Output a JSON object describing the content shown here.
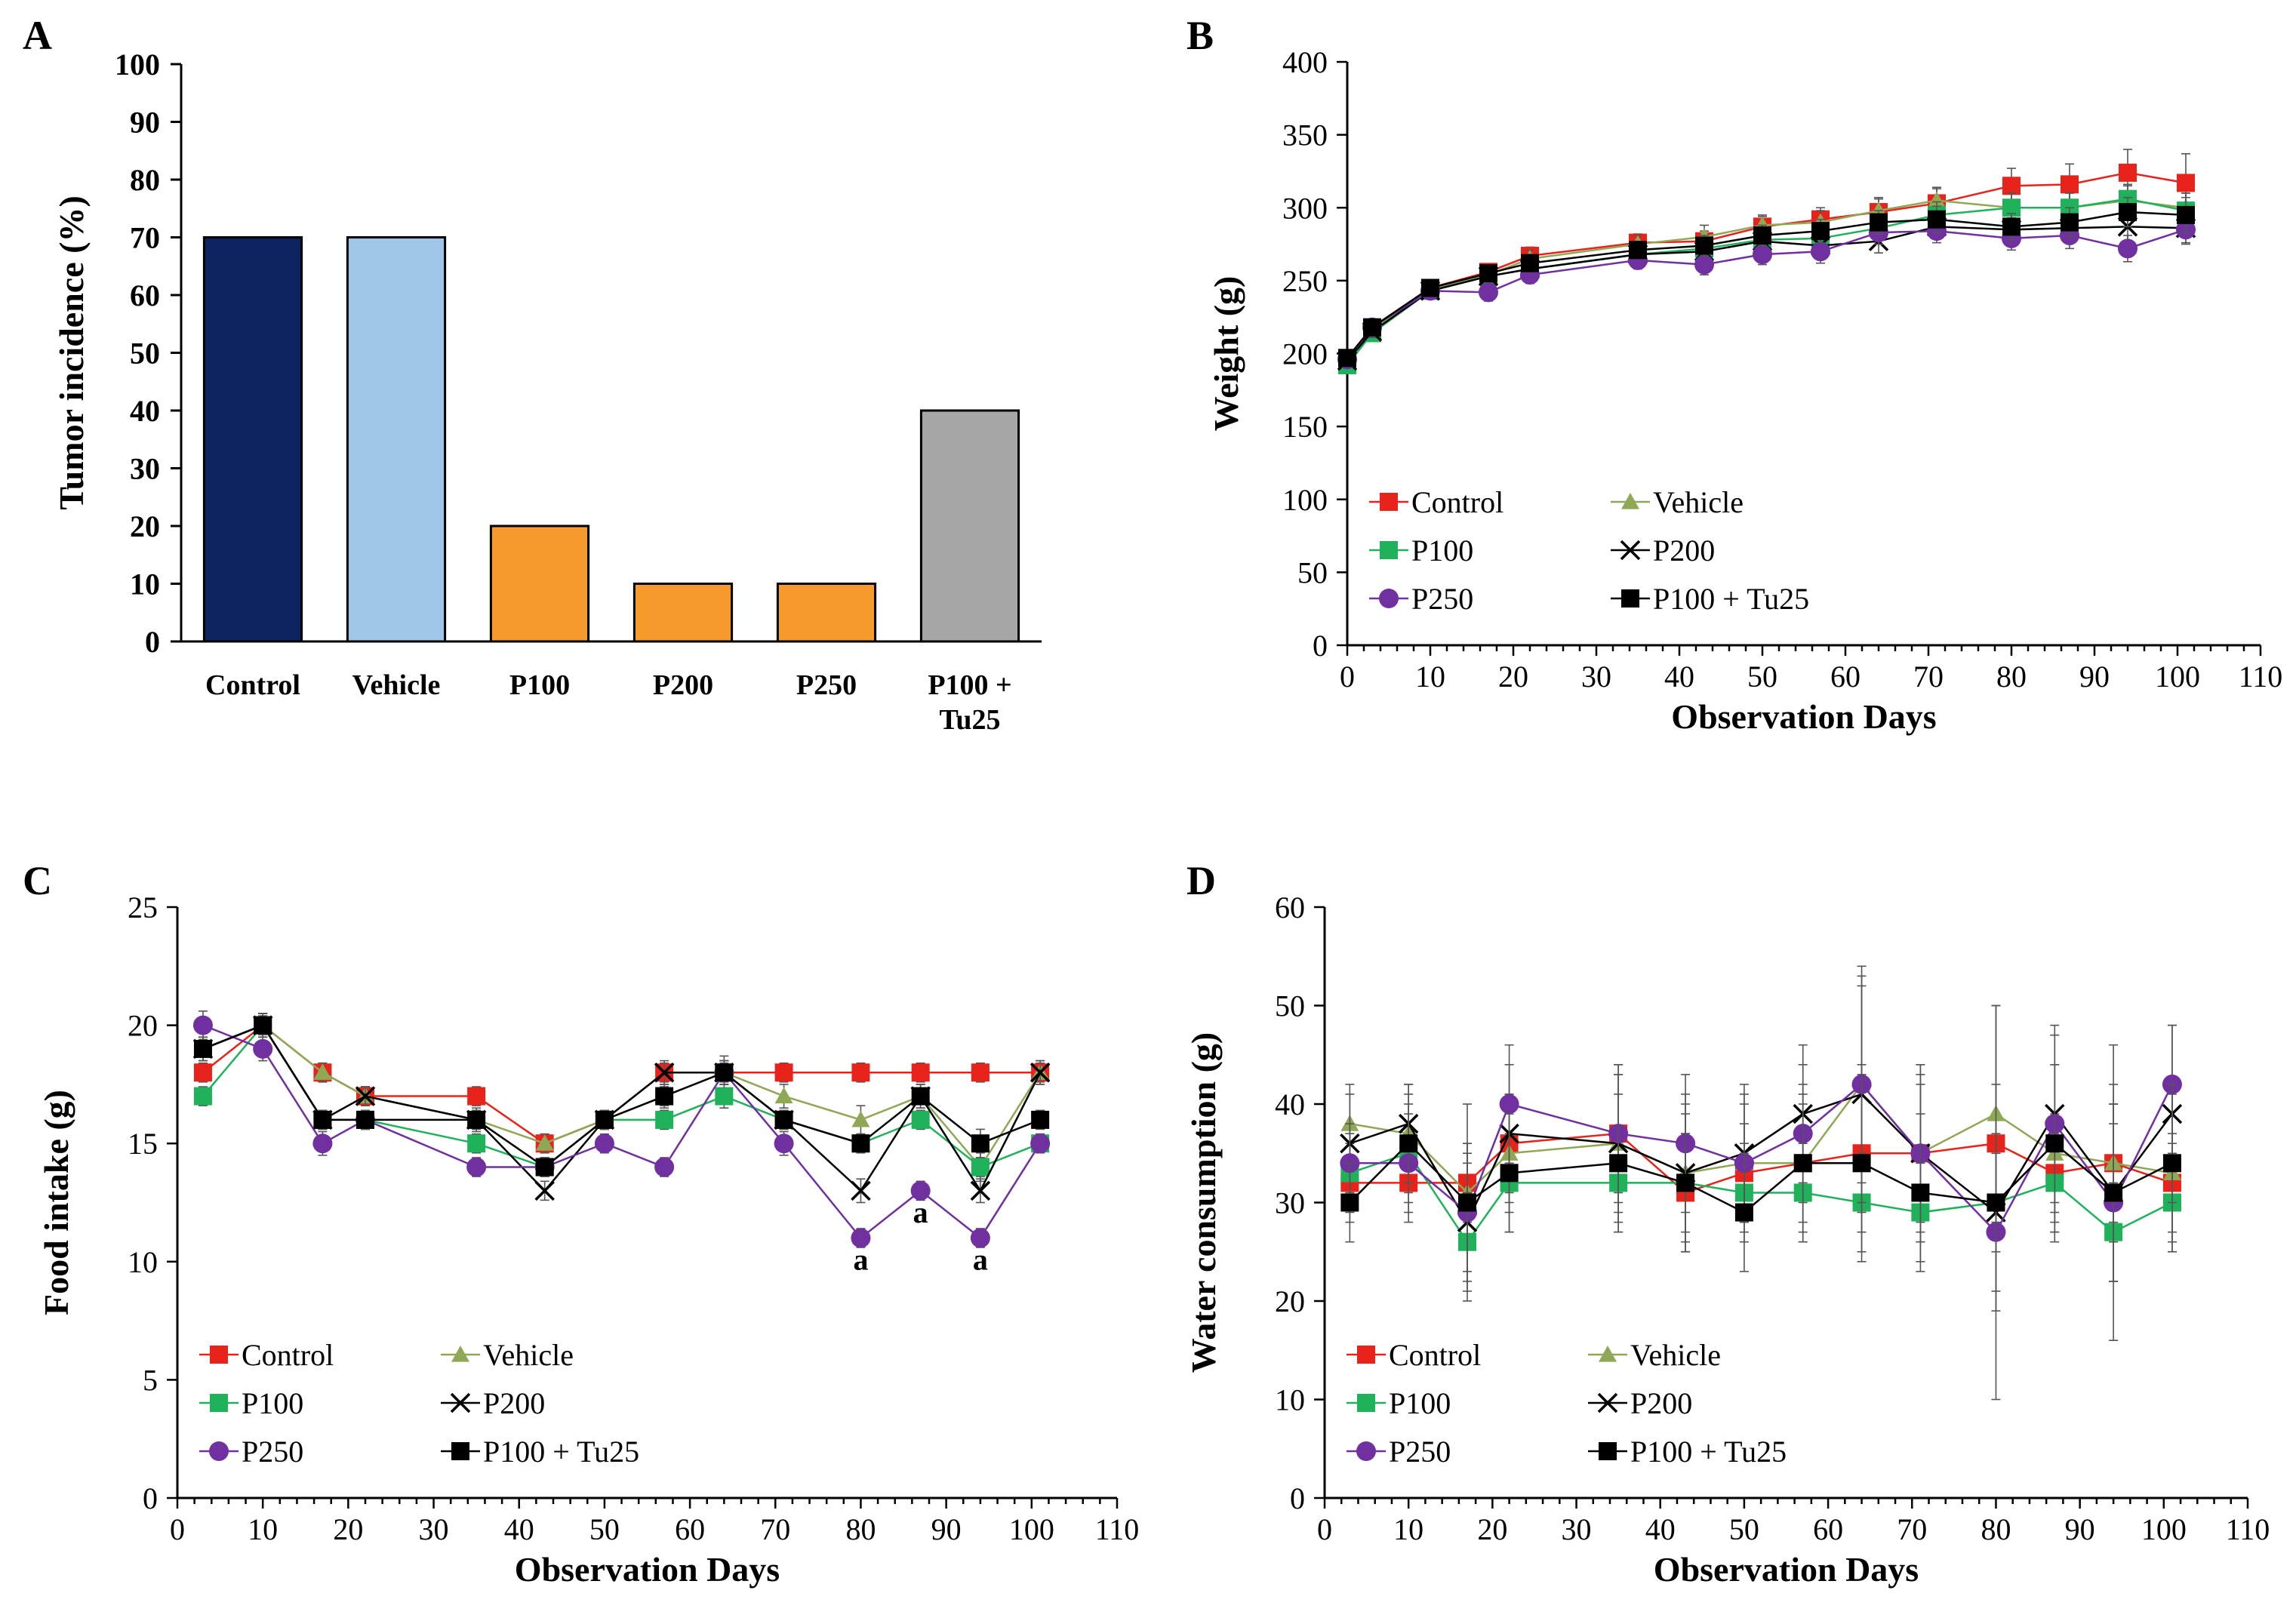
{
  "chart_data": [
    {
      "panel": "A",
      "type": "bar",
      "title": "",
      "xlabel": "",
      "ylabel": "Tumor incidence (%)",
      "ylim": [
        0,
        100
      ],
      "yticks": [
        "0",
        "10",
        "20",
        "30",
        "40",
        "50",
        "60",
        "70",
        "80",
        "90",
        "100"
      ],
      "categories": [
        {
          "lines": [
            "Control"
          ]
        },
        {
          "lines": [
            "Vehicle"
          ]
        },
        {
          "lines": [
            "P100"
          ]
        },
        {
          "lines": [
            "P200"
          ]
        },
        {
          "lines": [
            "P250"
          ]
        },
        {
          "lines": [
            "P100 +",
            "Tu25"
          ]
        }
      ],
      "values": [
        70,
        70,
        20,
        10,
        10,
        40
      ],
      "colors": [
        "#0d2260",
        "#9fc5e8",
        "#f79a2e",
        "#f79a2e",
        "#f79a2e",
        "#a6a6a6"
      ]
    },
    {
      "panel": "B",
      "type": "line",
      "xlabel": "Observation Days",
      "ylabel": "Weight (g)",
      "xlim": [
        0,
        110
      ],
      "ylim": [
        0,
        400
      ],
      "xticks": [
        "0",
        "10",
        "20",
        "30",
        "40",
        "50",
        "60",
        "70",
        "80",
        "90",
        "100",
        "110"
      ],
      "yticks": [
        "0",
        "50",
        "100",
        "150",
        "200",
        "250",
        "300",
        "350",
        "400"
      ],
      "x": [
        0,
        3,
        10,
        17,
        22,
        35,
        43,
        50,
        57,
        64,
        71,
        80,
        87,
        94,
        101
      ],
      "series": [
        {
          "name": "Control",
          "color": "#e8231b",
          "marker": "square",
          "values": [
            196,
            217,
            245,
            256,
            267,
            276,
            277,
            287,
            292,
            297,
            303,
            315,
            316,
            324,
            317
          ],
          "errors": [
            3,
            4,
            4,
            5,
            6,
            6,
            7,
            7,
            8,
            9,
            10,
            12,
            14,
            16,
            20
          ]
        },
        {
          "name": "Vehicle",
          "color": "#8fa856",
          "marker": "triangle",
          "values": [
            195,
            216,
            244,
            254,
            265,
            275,
            280,
            288,
            290,
            298,
            305,
            300,
            300,
            305,
            300
          ],
          "errors": [
            3,
            4,
            4,
            5,
            6,
            6,
            8,
            7,
            8,
            9,
            9,
            10,
            10,
            10,
            10
          ]
        },
        {
          "name": "P100",
          "color": "#1fb25a",
          "marker": "square",
          "values": [
            192,
            214,
            243,
            253,
            258,
            268,
            272,
            278,
            279,
            286,
            295,
            300,
            300,
            306,
            298
          ],
          "errors": [
            3,
            4,
            4,
            5,
            5,
            6,
            6,
            7,
            7,
            8,
            9,
            10,
            10,
            10,
            12
          ]
        },
        {
          "name": "P200",
          "color": "#000000",
          "marker": "x",
          "values": [
            195,
            215,
            243,
            253,
            258,
            268,
            270,
            277,
            274,
            277,
            287,
            285,
            286,
            287,
            286
          ],
          "errors": [
            3,
            4,
            4,
            5,
            5,
            6,
            6,
            7,
            7,
            8,
            8,
            8,
            9,
            10,
            10
          ]
        },
        {
          "name": "P250",
          "color": "#7030a0",
          "marker": "circle",
          "values": [
            196,
            218,
            243,
            242,
            254,
            264,
            261,
            268,
            270,
            283,
            284,
            279,
            281,
            272,
            285
          ],
          "errors": [
            3,
            4,
            4,
            6,
            6,
            6,
            7,
            7,
            8,
            8,
            8,
            8,
            9,
            9,
            10
          ]
        },
        {
          "name": "P100 + Tu25",
          "color": "#000000",
          "marker": "square",
          "values": [
            197,
            218,
            245,
            255,
            262,
            271,
            274,
            281,
            284,
            290,
            292,
            287,
            290,
            297,
            295
          ],
          "errors": [
            3,
            4,
            4,
            5,
            6,
            6,
            7,
            7,
            8,
            8,
            9,
            9,
            10,
            10,
            12
          ]
        }
      ],
      "legend": "bottom-left, 2 columns"
    },
    {
      "panel": "C",
      "type": "line",
      "xlabel": "Observation Days",
      "ylabel": "Food intake (g)",
      "xlim": [
        0,
        110
      ],
      "ylim": [
        0,
        25
      ],
      "xticks": [
        "0",
        "10",
        "20",
        "30",
        "40",
        "50",
        "60",
        "70",
        "80",
        "90",
        "100",
        "110"
      ],
      "yticks": [
        "0",
        "5",
        "10",
        "15",
        "20",
        "25"
      ],
      "x": [
        3,
        10,
        17,
        22,
        35,
        43,
        50,
        57,
        64,
        71,
        80,
        87,
        94,
        101
      ],
      "series": [
        {
          "name": "Control",
          "color": "#e8231b",
          "marker": "square",
          "values": [
            18,
            20,
            18,
            17,
            17,
            15,
            16,
            18,
            18,
            18,
            18,
            18,
            18,
            18
          ],
          "errors": [
            0.4,
            0.4,
            0.4,
            0.4,
            0.4,
            0.4,
            0.4,
            0.4,
            0.4,
            0.4,
            0.4,
            0.4,
            0.4,
            0.4
          ]
        },
        {
          "name": "Vehicle",
          "color": "#8fa856",
          "marker": "triangle",
          "values": [
            19,
            20,
            18,
            17,
            16,
            15,
            16,
            17,
            18,
            17,
            16,
            17,
            14,
            18
          ],
          "errors": [
            0.5,
            0.5,
            0.4,
            0.4,
            0.5,
            0.4,
            0.4,
            0.5,
            0.7,
            0.5,
            0.6,
            0.5,
            0.6,
            0.5
          ]
        },
        {
          "name": "P100",
          "color": "#1fb25a",
          "marker": "square",
          "values": [
            17,
            20,
            16,
            16,
            15,
            14,
            16,
            16,
            17,
            16,
            15,
            16,
            14,
            15
          ],
          "errors": [
            0.4,
            0.5,
            0.4,
            0.4,
            0.4,
            0.4,
            0.4,
            0.4,
            0.5,
            0.4,
            0.4,
            0.4,
            0.4,
            0.4
          ]
        },
        {
          "name": "P200",
          "color": "#000000",
          "marker": "x",
          "values": [
            19,
            20,
            16,
            17,
            16,
            13,
            16,
            18,
            18,
            16,
            13,
            17,
            13,
            18
          ],
          "errors": [
            0.5,
            0.5,
            0.4,
            0.4,
            0.4,
            0.4,
            0.4,
            0.5,
            0.5,
            0.4,
            0.5,
            0.5,
            0.5,
            0.5
          ]
        },
        {
          "name": "P250",
          "color": "#7030a0",
          "marker": "circle",
          "values": [
            20,
            19,
            15,
            16,
            14,
            14,
            15,
            14,
            18,
            15,
            11,
            13,
            11,
            15
          ],
          "errors": [
            0.6,
            0.5,
            0.5,
            0.4,
            0.4,
            0.4,
            0.4,
            0.4,
            0.5,
            0.5,
            0.4,
            0.4,
            0.4,
            0.4
          ]
        },
        {
          "name": "P100 + Tu25",
          "color": "#000000",
          "marker": "square",
          "values": [
            19,
            20,
            16,
            16,
            16,
            14,
            16,
            17,
            18,
            16,
            15,
            17,
            15,
            16
          ],
          "errors": [
            0.5,
            0.5,
            0.4,
            0.4,
            0.4,
            0.4,
            0.4,
            0.4,
            0.5,
            0.4,
            0.4,
            0.5,
            0.6,
            0.4
          ]
        }
      ],
      "annotations": [
        {
          "x": 80,
          "y": 10.1,
          "text": "a"
        },
        {
          "x": 87,
          "y": 12.1,
          "text": "a"
        },
        {
          "x": 94,
          "y": 10.1,
          "text": "a"
        }
      ],
      "legend": "bottom-left, 2 columns"
    },
    {
      "panel": "D",
      "type": "line",
      "xlabel": "Observation Days",
      "ylabel": "Water consumption (g)",
      "xlim": [
        0,
        110
      ],
      "ylim": [
        0,
        60
      ],
      "xticks": [
        "0",
        "10",
        "20",
        "30",
        "40",
        "50",
        "60",
        "70",
        "80",
        "90",
        "100",
        "110"
      ],
      "yticks": [
        "0",
        "10",
        "20",
        "30",
        "40",
        "50",
        "60"
      ],
      "x": [
        3,
        10,
        17,
        22,
        35,
        43,
        50,
        57,
        64,
        71,
        80,
        87,
        94,
        101
      ],
      "series": [
        {
          "name": "Control",
          "color": "#e8231b",
          "marker": "square",
          "values": [
            32,
            32,
            32,
            36,
            37,
            31,
            33,
            34,
            35,
            35,
            36,
            33,
            34,
            32
          ],
          "errors": [
            4,
            4,
            4,
            5,
            6,
            6,
            5,
            6,
            8,
            7,
            6,
            6,
            6,
            5
          ]
        },
        {
          "name": "Vehicle",
          "color": "#8fa856",
          "marker": "triangle",
          "values": [
            38,
            37,
            31,
            35,
            36,
            33,
            34,
            34,
            42,
            35,
            39,
            35,
            34,
            33
          ],
          "errors": [
            4,
            5,
            5,
            6,
            7,
            7,
            6,
            8,
            10,
            8,
            11,
            9,
            8,
            8
          ]
        },
        {
          "name": "P100",
          "color": "#1fb25a",
          "marker": "square",
          "values": [
            33,
            35,
            26,
            32,
            32,
            32,
            31,
            31,
            30,
            29,
            30,
            32,
            27,
            30
          ],
          "errors": [
            4,
            5,
            5,
            5,
            5,
            5,
            5,
            5,
            5,
            5,
            5,
            5,
            5,
            5
          ]
        },
        {
          "name": "P200",
          "color": "#000000",
          "marker": "x",
          "values": [
            36,
            38,
            28,
            37,
            36,
            33,
            35,
            39,
            41,
            35,
            29,
            39,
            31,
            39
          ],
          "errors": [
            5,
            4,
            6,
            7,
            8,
            8,
            7,
            7,
            12,
            9,
            8,
            9,
            9,
            9
          ]
        },
        {
          "name": "P250",
          "color": "#7030a0",
          "marker": "circle",
          "values": [
            34,
            34,
            29,
            40,
            37,
            36,
            34,
            37,
            42,
            35,
            27,
            38,
            30,
            42
          ],
          "errors": [
            4,
            5,
            6,
            6,
            7,
            7,
            7,
            7,
            12,
            9,
            8,
            9,
            8,
            6
          ]
        },
        {
          "name": "P100 + Tu25",
          "color": "#000000",
          "marker": "square",
          "values": [
            30,
            36,
            30,
            33,
            34,
            32,
            29,
            34,
            34,
            31,
            30,
            36,
            31,
            34
          ],
          "errors": [
            4,
            5,
            10,
            6,
            7,
            7,
            6,
            7,
            10,
            8,
            20,
            8,
            15,
            8
          ]
        }
      ],
      "legend": "bottom-left, 2 columns"
    }
  ]
}
